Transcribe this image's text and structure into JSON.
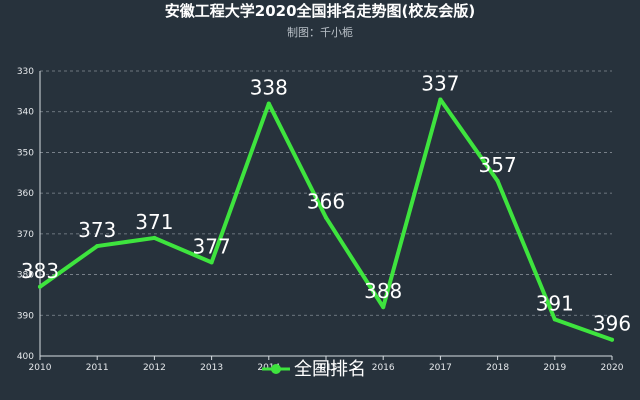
{
  "chart_data": {
    "type": "line",
    "title": "安徽工程大学2020全国排名走势图(校友会版)",
    "subtitle": "制图：千小栀",
    "x": [
      "2010",
      "2011",
      "2012",
      "2013",
      "2014",
      "2015",
      "2016",
      "2017",
      "2018",
      "2019",
      "2020"
    ],
    "series": [
      {
        "name": "全国排名",
        "values": [
          383,
          373,
          371,
          377,
          338,
          366,
          388,
          337,
          357,
          391,
          396
        ],
        "color": "#3ee43e"
      }
    ],
    "ylim": [
      330,
      400
    ],
    "y_inverted": true,
    "y_ticks": [
      330,
      340,
      350,
      360,
      370,
      380,
      390,
      400
    ],
    "grid": true,
    "legend_position": "bottom-center"
  }
}
